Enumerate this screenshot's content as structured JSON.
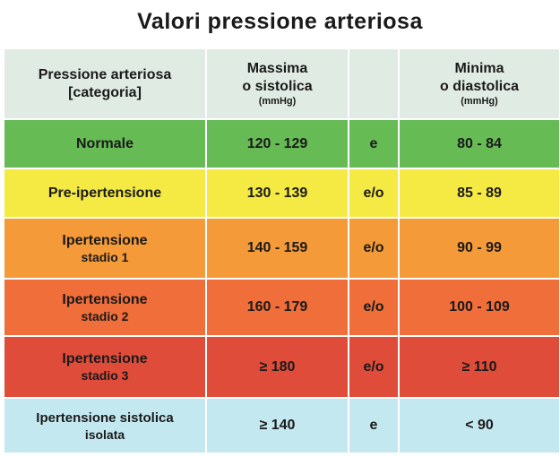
{
  "title": "Valori pressione arteriosa",
  "header": {
    "category_line1": "Pressione arteriosa",
    "category_line2": "[categoria]",
    "systolic_line1": "Massima",
    "systolic_line2": "o sistolica",
    "systolic_unit": "(mmHg)",
    "diastolic_line1": "Minima",
    "diastolic_line2": "o diastolica",
    "diastolic_unit": "(mmHg)"
  },
  "rows": [
    {
      "name": "Normale",
      "sub": "",
      "systolic": "120 - 129",
      "conj": "e",
      "diastolic": "80 - 84",
      "color": "#66bb55"
    },
    {
      "name": "Pre-ipertensione",
      "sub": "",
      "systolic": "130 - 139",
      "conj": "e/o",
      "diastolic": "85 - 89",
      "color": "#f5ea44"
    },
    {
      "name": "Ipertensione",
      "sub": "stadio 1",
      "systolic": "140 - 159",
      "conj": "e/o",
      "diastolic": "90 - 99",
      "color": "#f59a38"
    },
    {
      "name": "Ipertensione",
      "sub": "stadio 2",
      "systolic": "160 - 179",
      "conj": "e/o",
      "diastolic": "100 - 109",
      "color": "#ef6e3a"
    },
    {
      "name": "Ipertensione",
      "sub": "stadio 3",
      "systolic": "≥ 180",
      "conj": "e/o",
      "diastolic": "≥ 110",
      "color": "#df4c3a"
    },
    {
      "name": "Ipertensione sistolica",
      "sub": "isolata",
      "systolic": "≥ 140",
      "conj": "e",
      "diastolic": "< 90",
      "color": "#c4e8f0"
    }
  ]
}
